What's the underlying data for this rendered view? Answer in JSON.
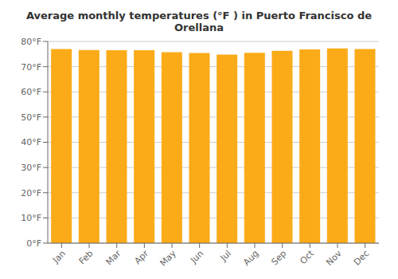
{
  "chart_data": {
    "type": "bar",
    "title": "Average monthly temperatures (°F ) in Puerto Francisco de Orellana",
    "categories": [
      "Jan",
      "Feb",
      "Mar",
      "Apr",
      "May",
      "Jun",
      "Jul",
      "Aug",
      "Sep",
      "Oct",
      "Nov",
      "Dec"
    ],
    "values": [
      77.0,
      76.6,
      76.5,
      76.5,
      75.7,
      75.4,
      74.8,
      75.5,
      76.3,
      76.8,
      77.2,
      77.0
    ],
    "color": "#FBAB18",
    "ylim": [
      0,
      80
    ],
    "yticks": [
      {
        "value": 0,
        "label": "0°F"
      },
      {
        "value": 10,
        "label": "10°F"
      },
      {
        "value": 20,
        "label": "20°F"
      },
      {
        "value": 30,
        "label": "30°F"
      },
      {
        "value": 40,
        "label": "40°F"
      },
      {
        "value": 50,
        "label": "50°F"
      },
      {
        "value": 60,
        "label": "60°F"
      },
      {
        "value": 70,
        "label": "70°F"
      },
      {
        "value": 80,
        "label": "80°F"
      }
    ],
    "grid": true
  }
}
